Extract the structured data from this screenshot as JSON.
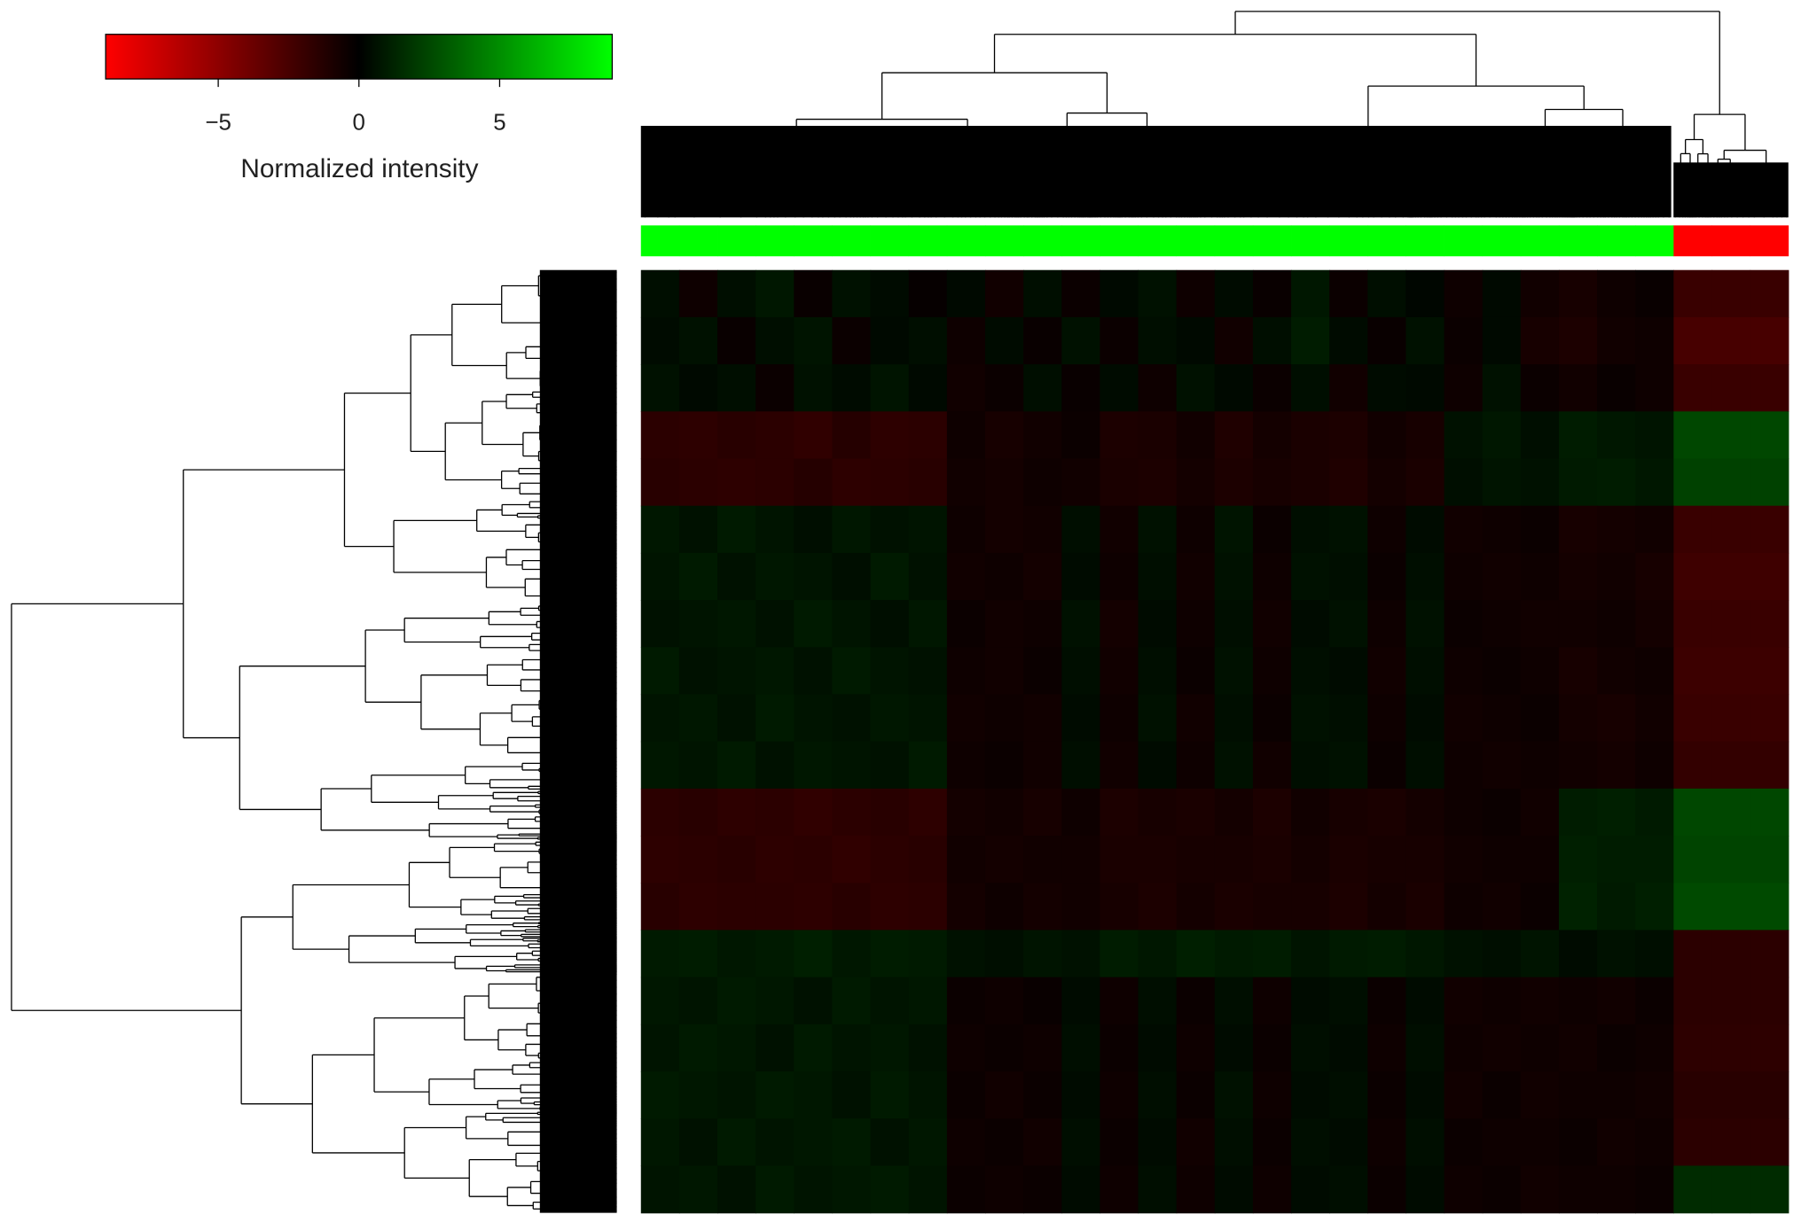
{
  "chart_data": {
    "type": "heatmap",
    "colorbar": {
      "label": "Normalized intensity",
      "clim": [
        -9,
        9
      ],
      "ticks": [
        {
          "value": -5,
          "label": "−5"
        },
        0,
        5
      ],
      "colors": [
        "#ff0000",
        "#000000",
        "#00ff00"
      ]
    },
    "column_annotation": [
      "#00ff00",
      "#00ff00",
      "#00ff00",
      "#00ff00",
      "#00ff00",
      "#00ff00",
      "#00ff00",
      "#00ff00",
      "#00ff00",
      "#00ff00",
      "#00ff00",
      "#00ff00",
      "#00ff00",
      "#00ff00",
      "#00ff00",
      "#00ff00",
      "#00ff00",
      "#00ff00",
      "#00ff00",
      "#00ff00",
      "#00ff00",
      "#00ff00",
      "#00ff00",
      "#00ff00",
      "#00ff00",
      "#00ff00",
      "#00ff00",
      "#ff0000",
      "#ff0000",
      "#ff0000"
    ],
    "values": [
      [
        0.5,
        -0.5,
        0.5,
        0.8,
        -0.3,
        0.6,
        0.4,
        -0.2,
        0.3,
        -0.6,
        0.5,
        -0.4,
        0.3,
        0.6,
        -0.5,
        0.4,
        -0.3,
        0.8,
        -0.4,
        0.5,
        0.2,
        -0.5,
        0.3,
        -0.6,
        -0.8,
        -0.5,
        -0.3,
        -2,
        -2,
        -2
      ],
      [
        0.4,
        0.6,
        -0.3,
        0.5,
        0.7,
        -0.4,
        0.3,
        0.5,
        -0.5,
        0.4,
        -0.3,
        0.6,
        -0.4,
        0.5,
        0.3,
        -0.6,
        0.5,
        1,
        0.4,
        -0.3,
        0.6,
        -0.4,
        0.3,
        -0.8,
        -1,
        -0.6,
        -0.5,
        -2.5,
        -2.5,
        -2.5
      ],
      [
        0.6,
        0.3,
        0.5,
        -0.4,
        0.6,
        0.4,
        0.7,
        0.3,
        -0.6,
        -0.4,
        0.5,
        -0.3,
        0.4,
        -0.5,
        0.6,
        0.3,
        -0.4,
        0.5,
        -0.6,
        0.4,
        0.3,
        -0.5,
        0.6,
        -0.4,
        -0.6,
        -0.3,
        -0.5,
        -2,
        -2,
        -2
      ],
      [
        -1.5,
        -1.6,
        -1.4,
        -1.5,
        -1.7,
        -1.3,
        -1.6,
        -1.5,
        -0.5,
        -0.8,
        -0.6,
        -0.4,
        -1,
        -0.9,
        -0.6,
        -1.1,
        -0.7,
        -0.9,
        -1,
        -0.6,
        -0.8,
        0.6,
        0.8,
        0.5,
        1,
        0.8,
        0.7,
        2.5,
        2.5,
        2.5
      ],
      [
        -1.4,
        -1.5,
        -1.6,
        -1.5,
        -1.3,
        -1.6,
        -1.5,
        -1.4,
        -0.6,
        -0.7,
        -0.5,
        -0.6,
        -0.9,
        -1,
        -0.7,
        -1,
        -0.8,
        -0.9,
        -1.1,
        -0.7,
        -0.9,
        0.5,
        0.7,
        0.6,
        0.9,
        1,
        0.8,
        2.3,
        2.3,
        2.3
      ],
      [
        0.8,
        0.6,
        0.9,
        0.7,
        0.5,
        0.8,
        0.6,
        0.7,
        -0.5,
        -0.7,
        -0.6,
        0.5,
        -0.6,
        0.6,
        -0.5,
        0.7,
        -0.4,
        0.5,
        0.6,
        -0.5,
        0.4,
        -0.6,
        -0.5,
        -0.4,
        -0.8,
        -0.7,
        -0.6,
        -2,
        -2,
        -2
      ],
      [
        0.7,
        0.9,
        0.6,
        0.8,
        0.7,
        0.5,
        0.9,
        0.6,
        -0.6,
        -0.5,
        -0.7,
        0.4,
        -0.5,
        0.5,
        -0.6,
        0.6,
        -0.5,
        0.6,
        0.5,
        -0.4,
        0.5,
        -0.5,
        -0.6,
        -0.5,
        -0.7,
        -0.6,
        -0.8,
        -2.2,
        -2.2,
        -2.2
      ],
      [
        0.6,
        0.7,
        0.8,
        0.6,
        0.9,
        0.7,
        0.5,
        0.8,
        -0.4,
        -0.6,
        -0.5,
        0.6,
        -0.7,
        0.4,
        -0.5,
        0.5,
        -0.6,
        0.4,
        0.6,
        -0.5,
        0.6,
        -0.4,
        -0.5,
        -0.6,
        -0.6,
        -0.5,
        -0.7,
        -2,
        -2,
        -2
      ],
      [
        0.9,
        0.6,
        0.7,
        0.8,
        0.6,
        0.9,
        0.7,
        0.6,
        -0.5,
        -0.6,
        -0.4,
        0.5,
        -0.6,
        0.5,
        -0.4,
        0.6,
        -0.5,
        0.5,
        0.4,
        -0.6,
        0.5,
        -0.5,
        -0.4,
        -0.5,
        -0.8,
        -0.6,
        -0.5,
        -2.1,
        -2.1,
        -2.1
      ],
      [
        0.7,
        0.8,
        0.6,
        0.9,
        0.7,
        0.6,
        0.8,
        0.7,
        -0.6,
        -0.5,
        -0.6,
        0.4,
        -0.5,
        0.6,
        -0.6,
        0.5,
        -0.4,
        0.6,
        0.5,
        -0.5,
        0.4,
        -0.6,
        -0.5,
        -0.4,
        -0.7,
        -0.8,
        -0.6,
        -2,
        -2,
        -2
      ],
      [
        0.8,
        0.7,
        0.9,
        0.6,
        0.8,
        0.7,
        0.6,
        0.9,
        -0.5,
        -0.4,
        -0.6,
        0.5,
        -0.6,
        0.4,
        -0.5,
        0.6,
        -0.6,
        0.5,
        0.6,
        -0.4,
        0.5,
        -0.5,
        -0.6,
        -0.5,
        -0.6,
        -0.7,
        -0.5,
        -1.8,
        -1.8,
        -1.8
      ],
      [
        -1.5,
        -1.4,
        -1.6,
        -1.5,
        -1.7,
        -1.5,
        -1.4,
        -1.6,
        -0.7,
        -0.6,
        -0.8,
        -0.5,
        -1,
        -0.8,
        -0.9,
        -0.7,
        -1,
        -0.6,
        -0.8,
        -0.9,
        -0.7,
        -0.5,
        -0.4,
        -0.6,
        1,
        1.1,
        0.9,
        2.5,
        2.5,
        2.5
      ],
      [
        -1.6,
        -1.5,
        -1.4,
        -1.6,
        -1.5,
        -1.7,
        -1.5,
        -1.4,
        -0.6,
        -0.7,
        -0.6,
        -0.6,
        -0.9,
        -0.9,
        -0.8,
        -0.8,
        -0.9,
        -0.7,
        -0.9,
        -0.8,
        -0.8,
        -0.6,
        -0.5,
        -0.5,
        1.1,
        1,
        1,
        2.4,
        2.4,
        2.4
      ],
      [
        -1.4,
        -1.6,
        -1.5,
        -1.5,
        -1.6,
        -1.4,
        -1.6,
        -1.5,
        -0.7,
        -0.5,
        -0.7,
        -0.6,
        -0.8,
        -1,
        -0.7,
        -0.9,
        -0.8,
        -0.8,
        -1,
        -0.7,
        -0.9,
        -0.5,
        -0.6,
        -0.4,
        1.2,
        0.9,
        1.1,
        2.6,
        2.6,
        2.6
      ],
      [
        0.9,
        1,
        0.8,
        0.9,
        1.1,
        0.8,
        1,
        0.9,
        0.6,
        0.5,
        0.7,
        0.6,
        1,
        0.8,
        1.1,
        0.9,
        1,
        0.7,
        0.9,
        1,
        0.8,
        0.6,
        0.5,
        0.7,
        0.4,
        0.6,
        0.5,
        -1.5,
        -1.5,
        -1.5
      ],
      [
        0.8,
        0.7,
        0.9,
        0.8,
        0.6,
        0.9,
        0.7,
        0.8,
        -0.4,
        -0.5,
        -0.3,
        0.4,
        -0.5,
        0.5,
        -0.4,
        0.5,
        -0.5,
        0.4,
        0.5,
        -0.4,
        0.4,
        -0.6,
        -0.5,
        -0.6,
        -0.5,
        -0.6,
        -0.4,
        -1.5,
        -1.5,
        -1.5
      ],
      [
        0.7,
        0.9,
        0.8,
        0.6,
        0.9,
        0.7,
        0.8,
        0.6,
        -0.5,
        -0.4,
        -0.5,
        0.5,
        -0.4,
        0.4,
        -0.5,
        0.4,
        -0.4,
        0.5,
        0.4,
        -0.5,
        0.5,
        -0.5,
        -0.6,
        -0.5,
        -0.6,
        -0.4,
        -0.5,
        -1.6,
        -1.6,
        -1.6
      ],
      [
        0.9,
        0.8,
        0.7,
        0.9,
        0.8,
        0.6,
        0.9,
        0.7,
        -0.4,
        -0.6,
        -0.4,
        0.4,
        -0.5,
        0.5,
        -0.4,
        0.6,
        -0.5,
        0.4,
        0.5,
        -0.4,
        0.4,
        -0.6,
        -0.4,
        -0.6,
        -0.5,
        -0.5,
        -0.6,
        -1.4,
        -1.4,
        -1.4
      ],
      [
        0.8,
        0.6,
        0.9,
        0.7,
        0.8,
        0.9,
        0.6,
        0.8,
        -0.5,
        -0.4,
        -0.6,
        0.5,
        -0.4,
        0.4,
        -0.6,
        0.5,
        -0.4,
        0.5,
        0.4,
        -0.5,
        0.5,
        -0.4,
        -0.5,
        -0.5,
        -0.4,
        -0.6,
        -0.5,
        -1.5,
        -1.5,
        -1.5
      ],
      [
        0.7,
        0.8,
        0.6,
        0.9,
        0.7,
        0.8,
        0.9,
        0.7,
        -0.4,
        -0.5,
        -0.4,
        0.4,
        -0.5,
        0.5,
        -0.5,
        0.4,
        -0.5,
        0.4,
        0.5,
        -0.4,
        0.4,
        -0.5,
        -0.4,
        -0.6,
        -0.5,
        -0.5,
        -0.4,
        1.5,
        1.5,
        1.5
      ]
    ]
  }
}
